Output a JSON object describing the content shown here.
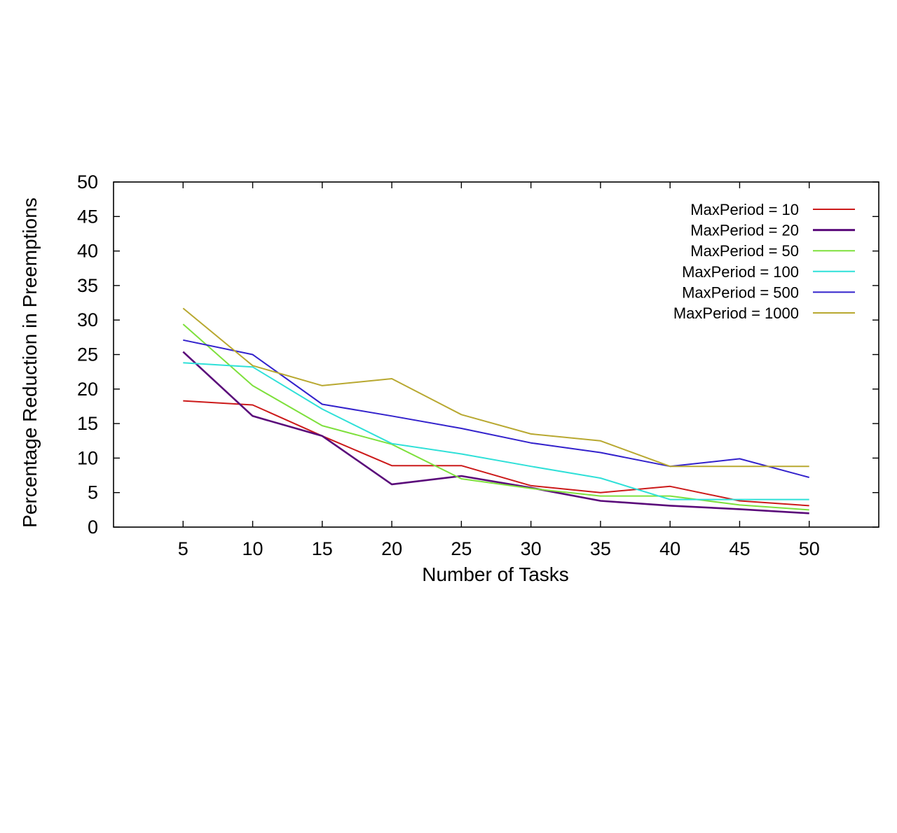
{
  "chart_data": {
    "type": "line",
    "title": "",
    "xlabel": "Number of Tasks",
    "ylabel": "Percentage Reduction in Preemptions",
    "x": [
      5,
      10,
      15,
      20,
      25,
      30,
      35,
      40,
      45,
      50
    ],
    "xlim": [
      0,
      55
    ],
    "ylim": [
      0,
      50
    ],
    "xticks": [
      5,
      10,
      15,
      20,
      25,
      30,
      35,
      40,
      45,
      50
    ],
    "yticks": [
      0,
      5,
      10,
      15,
      20,
      25,
      30,
      35,
      40,
      45,
      50
    ],
    "grid": false,
    "legend_position": "top-right",
    "series": [
      {
        "name": "MaxPeriod = 10",
        "color": "#cc1a1a",
        "values": [
          18.3,
          17.7,
          13.2,
          8.9,
          8.9,
          6.0,
          5.0,
          5.9,
          3.8,
          3.1
        ]
      },
      {
        "name": "MaxPeriod = 20",
        "color": "#5a0a7a",
        "values": [
          25.4,
          16.1,
          13.2,
          6.2,
          7.4,
          5.7,
          3.8,
          3.1,
          2.6,
          2.0
        ]
      },
      {
        "name": "MaxPeriod = 50",
        "color": "#7ee03c",
        "values": [
          29.4,
          20.5,
          14.7,
          12.0,
          7.0,
          5.6,
          4.5,
          4.5,
          3.2,
          2.5
        ]
      },
      {
        "name": "MaxPeriod = 100",
        "color": "#2fe0d8",
        "values": [
          23.8,
          23.2,
          17.1,
          12.1,
          10.6,
          8.8,
          7.1,
          4.0,
          4.0,
          4.0
        ]
      },
      {
        "name": "MaxPeriod = 500",
        "color": "#3322cc",
        "values": [
          27.1,
          25.0,
          17.8,
          16.1,
          14.3,
          12.2,
          10.8,
          8.8,
          9.9,
          7.2
        ]
      },
      {
        "name": "MaxPeriod = 1000",
        "color": "#b8a830",
        "values": [
          31.7,
          23.4,
          20.5,
          21.5,
          16.3,
          13.5,
          12.5,
          8.8,
          8.8,
          8.8
        ]
      }
    ]
  }
}
